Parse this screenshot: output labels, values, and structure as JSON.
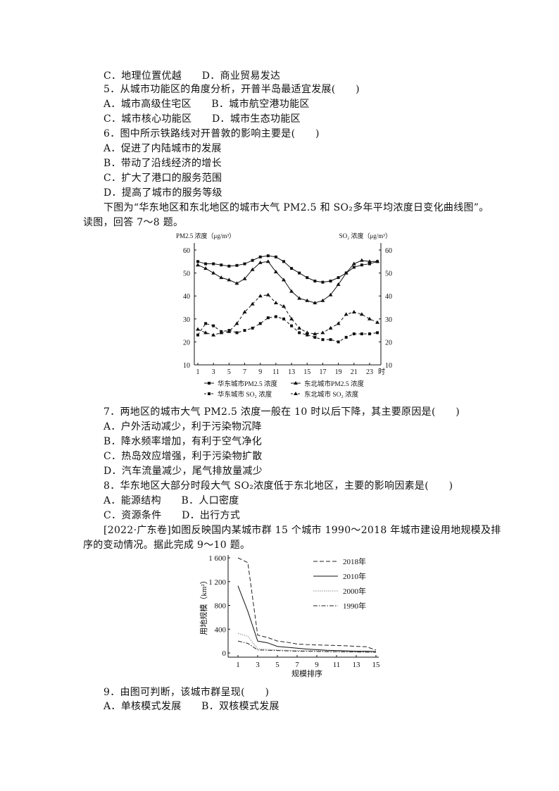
{
  "text_block_1": [
    "C．地理位置优越　　D．商业贸易发达",
    "5．从城市功能区的角度分析，开普半岛最适宜发展(　　)",
    "A．城市高级住宅区　　B．城市航空港功能区",
    "C．城市核心功能区　　D．城市生态功能区",
    "6．图中所示铁路线对开普敦的影响主要是(　　)",
    "A．促进了内陆城市的发展",
    "B．带动了沿线经济的增长",
    "C．扩大了港口的服务范围",
    "D．提高了城市的服务等级",
    "下图为“华东地区和东北地区的城市大气 PM2.5 和 SO₂多年平均浓度日变化曲线图”。",
    "读图，回答 7～8 题。"
  ],
  "text_block_2": [
    "7．两地区的城市大气 PM2.5 浓度一般在 10 时以后下降，其主要原因是(　　)",
    "A．户外活动减少，利于污染物沉降",
    "B．降水频率增加，有利于空气净化",
    "C．热岛效应增强，利于污染物扩散",
    "D．汽车流量减少，尾气排放量减少",
    "8．华东地区大部分时段大气 SO₂浓度低于东北地区，主要的影响因素是(　　)",
    "A．能源结构　　B．人口密度",
    "C．资源条件　　D．出行方式",
    "[2022·广东卷]如图反映国内某城市群 15 个城市 1990～2018 年城市建设用地规模及排",
    "序的变动情况。据此完成 9～10 题。"
  ],
  "text_block_3": [
    "9．由图可判断，该城市群呈现(　　)",
    "A．单核模式发展　　B．双核模式发展"
  ],
  "chart_data": [
    {
      "type": "line",
      "ylabel_left": "PM2.5 浓度（μg/m³）",
      "ylabel_right": "SO₂ 浓度（μg/m³）",
      "xunit": "时",
      "ylim": [
        10,
        60
      ],
      "yticks": [
        10,
        20,
        30,
        40,
        50,
        60
      ],
      "xticks": [
        1,
        3,
        5,
        7,
        9,
        11,
        13,
        15,
        17,
        19,
        21,
        23
      ],
      "x": [
        1,
        2,
        3,
        4,
        5,
        6,
        7,
        8,
        9,
        10,
        11,
        12,
        13,
        14,
        15,
        16,
        17,
        18,
        19,
        20,
        21,
        22,
        23,
        24
      ],
      "legend_position": "bottom",
      "series": [
        {
          "name": "华东城市PM2.5 浓度",
          "marker": "square",
          "dash": "solid",
          "values": [
            55,
            54,
            54,
            53.5,
            53,
            53.3,
            54,
            55.5,
            57,
            57.5,
            57,
            55,
            52,
            50,
            48,
            46.5,
            46,
            46.5,
            48,
            50,
            52.5,
            53.5,
            54,
            55
          ]
        },
        {
          "name": "东北城市PM2.5 浓度",
          "marker": "triangle",
          "dash": "solid",
          "values": [
            53.5,
            52,
            50,
            48,
            47,
            45.5,
            47.5,
            51.5,
            54.5,
            55,
            50.5,
            47,
            42,
            39,
            38,
            37,
            38,
            40.5,
            45,
            50,
            54,
            55.5,
            55,
            55
          ]
        },
        {
          "name": "华东城市 SO₂ 浓度",
          "marker": "square",
          "dash": "dashed",
          "values": [
            23,
            28,
            27,
            24.5,
            25,
            24,
            25,
            26,
            28,
            30.5,
            31,
            30,
            27,
            24,
            23,
            22,
            21,
            21,
            20,
            22,
            23.5,
            23.5,
            23.5,
            24
          ]
        },
        {
          "name": "东北城市 SO₂ 浓度",
          "marker": "triangle",
          "dash": "dashed",
          "values": [
            25.5,
            24,
            23,
            24,
            24.5,
            28,
            33,
            36.5,
            40,
            40.5,
            37,
            35.5,
            30,
            26,
            24,
            23.5,
            24,
            26,
            28,
            32,
            33,
            32,
            30,
            28.5
          ]
        }
      ]
    },
    {
      "type": "line",
      "xlabel": "规模排序",
      "ylabel": "用地规模（km²）",
      "ylim": [
        0,
        1600
      ],
      "yticks": [
        0,
        400,
        800,
        1200,
        1600
      ],
      "ytick_labels": [
        "0",
        "400",
        "800",
        "1 200",
        "1 600"
      ],
      "xticks": [
        1,
        3,
        5,
        7,
        9,
        11,
        13,
        15
      ],
      "x": [
        1,
        2,
        3,
        4,
        5,
        6,
        7,
        8,
        9,
        10,
        11,
        12,
        13,
        14,
        15
      ],
      "legend_position": "top-right",
      "series": [
        {
          "name": "2018年",
          "dash": "dashed",
          "color": "#222222",
          "values": [
            1600,
            1520,
            300,
            260,
            200,
            180,
            150,
            140,
            135,
            130,
            125,
            120,
            110,
            105,
            50
          ]
        },
        {
          "name": "2010年",
          "dash": "solid",
          "color": "#111111",
          "values": [
            1130,
            700,
            200,
            170,
            110,
            95,
            80,
            65,
            55,
            45,
            40,
            35,
            30,
            30,
            25
          ]
        },
        {
          "name": "2000年",
          "dash": "dotted",
          "color": "#888888",
          "values": [
            330,
            280,
            70,
            60,
            50,
            45,
            40,
            40,
            35,
            30,
            25,
            20,
            15,
            15,
            15
          ]
        },
        {
          "name": "1990年",
          "dash": "dashdot",
          "color": "#222222",
          "values": [
            200,
            160,
            50,
            45,
            40,
            35,
            30,
            28,
            25,
            22,
            20,
            18,
            15,
            12,
            10
          ]
        }
      ]
    }
  ]
}
